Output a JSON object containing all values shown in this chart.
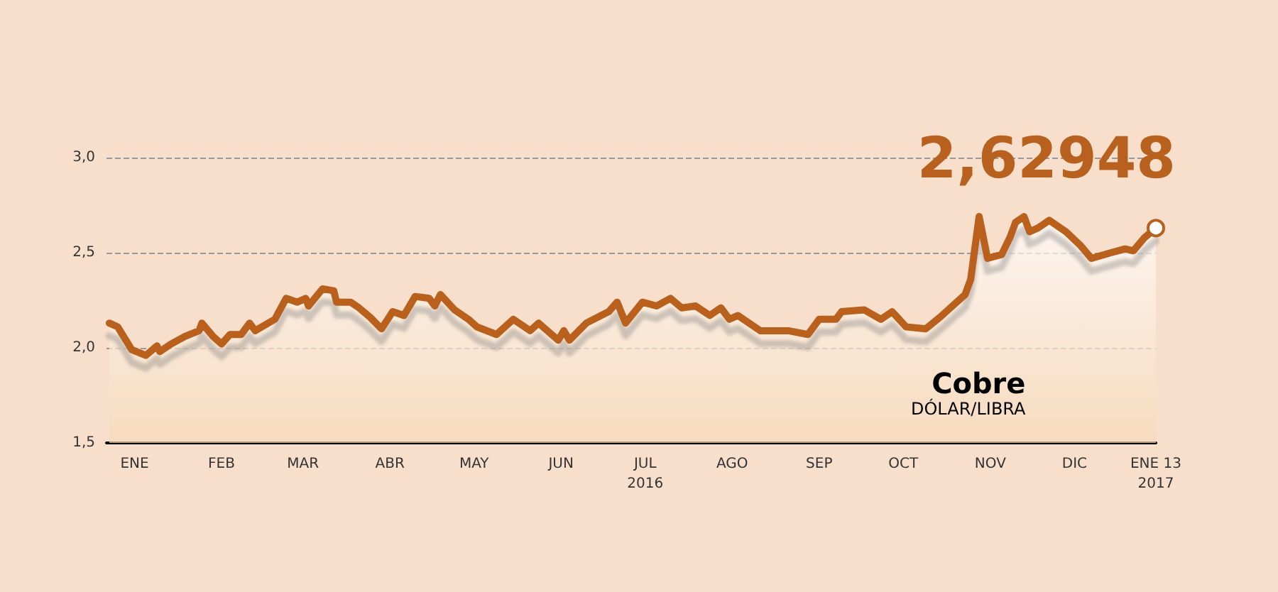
{
  "chart_data": {
    "type": "area",
    "title": "Cobre",
    "subtitle": "DÓLAR/LIBRA",
    "x": [
      "2016-01-06",
      "2016-01-09",
      "2016-01-14",
      "2016-01-19",
      "2016-01-23",
      "2016-01-24",
      "2016-01-28",
      "2016-02-02",
      "2016-02-07",
      "2016-02-08",
      "2016-02-12",
      "2016-02-15",
      "2016-02-18",
      "2016-02-22",
      "2016-02-25",
      "2016-02-27",
      "2016-03-05",
      "2016-03-09",
      "2016-03-13",
      "2016-03-16",
      "2016-03-17",
      "2016-03-22",
      "2016-03-26",
      "2016-03-27",
      "2016-04-01",
      "2016-04-04",
      "2016-04-08",
      "2016-04-12",
      "2016-04-16",
      "2016-04-20",
      "2016-04-24",
      "2016-04-29",
      "2016-05-01",
      "2016-05-03",
      "2016-05-08",
      "2016-05-13",
      "2016-05-16",
      "2016-05-23",
      "2016-05-29",
      "2016-06-04",
      "2016-06-07",
      "2016-06-14",
      "2016-06-16",
      "2016-06-18",
      "2016-06-24",
      "2016-07-02",
      "2016-07-05",
      "2016-07-08",
      "2016-07-14",
      "2016-07-19",
      "2016-07-24",
      "2016-07-28",
      "2016-08-02",
      "2016-08-07",
      "2016-08-11",
      "2016-08-14",
      "2016-08-17",
      "2016-08-25",
      "2016-09-04",
      "2016-09-11",
      "2016-09-15",
      "2016-09-21",
      "2016-09-23",
      "2016-10-01",
      "2016-10-07",
      "2016-10-11",
      "2016-10-16",
      "2016-10-23",
      "2016-10-28",
      "2016-11-06",
      "2016-11-08",
      "2016-11-11",
      "2016-11-14",
      "2016-11-19",
      "2016-11-22",
      "2016-11-24",
      "2016-11-27",
      "2016-11-29",
      "2016-12-02",
      "2016-12-06",
      "2016-12-12",
      "2016-12-17",
      "2016-12-21",
      "2016-12-28",
      "2017-01-02",
      "2017-01-05",
      "2017-01-09",
      "2017-01-13"
    ],
    "series": [
      {
        "color": "#b8601e",
        "values": [
          2.13,
          2.11,
          1.99,
          1.96,
          2.01,
          1.98,
          2.02,
          2.06,
          2.09,
          2.13,
          2.06,
          2.02,
          2.07,
          2.07,
          2.13,
          2.09,
          2.15,
          2.26,
          2.24,
          2.26,
          2.22,
          2.31,
          2.3,
          2.24,
          2.24,
          2.21,
          2.16,
          2.1,
          2.19,
          2.17,
          2.27,
          2.26,
          2.22,
          2.28,
          2.2,
          2.15,
          2.11,
          2.07,
          2.15,
          2.09,
          2.13,
          2.04,
          2.09,
          2.04,
          2.13,
          2.19,
          2.24,
          2.13,
          2.24,
          2.22,
          2.26,
          2.21,
          2.22,
          2.17,
          2.21,
          2.15,
          2.17,
          2.09,
          2.09,
          2.07,
          2.15,
          2.15,
          2.19,
          2.2,
          2.15,
          2.19,
          2.11,
          2.1,
          2.16,
          2.28,
          2.36,
          2.69,
          2.47,
          2.49,
          2.58,
          2.66,
          2.69,
          2.61,
          2.63,
          2.67,
          2.61,
          2.54,
          2.47,
          2.5,
          2.52,
          2.51,
          2.58,
          2.62948
        ]
      }
    ],
    "xlim": [
      "2016-01-05",
      "2017-01-13"
    ],
    "xticks": [
      {
        "value": "2016-01-15",
        "label": "ENE"
      },
      {
        "value": "2016-02-15",
        "label": "FEB"
      },
      {
        "value": "2016-03-15",
        "label": "MAR"
      },
      {
        "value": "2016-04-15",
        "label": "ABR"
      },
      {
        "value": "2016-05-15",
        "label": "MAY"
      },
      {
        "value": "2016-06-15",
        "label": "JUN"
      },
      {
        "value": "2016-07-15",
        "label": "JUL\n2016"
      },
      {
        "value": "2016-08-15",
        "label": "AGO"
      },
      {
        "value": "2016-09-15",
        "label": "SEP"
      },
      {
        "value": "2016-10-15",
        "label": "OCT"
      },
      {
        "value": "2016-11-15",
        "label": "NOV"
      },
      {
        "value": "2016-12-15",
        "label": "DIC"
      },
      {
        "value": "2017-01-13",
        "label": "ENE 13\n2017"
      }
    ],
    "ylim": [
      1.5,
      3.0
    ],
    "yticks": [
      {
        "value": 1.5,
        "label": "1,5"
      },
      {
        "value": 2.0,
        "label": "2,0"
      },
      {
        "value": 2.5,
        "label": "2,5"
      },
      {
        "value": 3.0,
        "label": "3,0"
      }
    ],
    "grid": "y",
    "marker": "none",
    "line_style": "solid",
    "annotations": [
      {
        "text": "2,62948",
        "x": "2017-01-13",
        "y": 2.62948
      }
    ]
  }
}
